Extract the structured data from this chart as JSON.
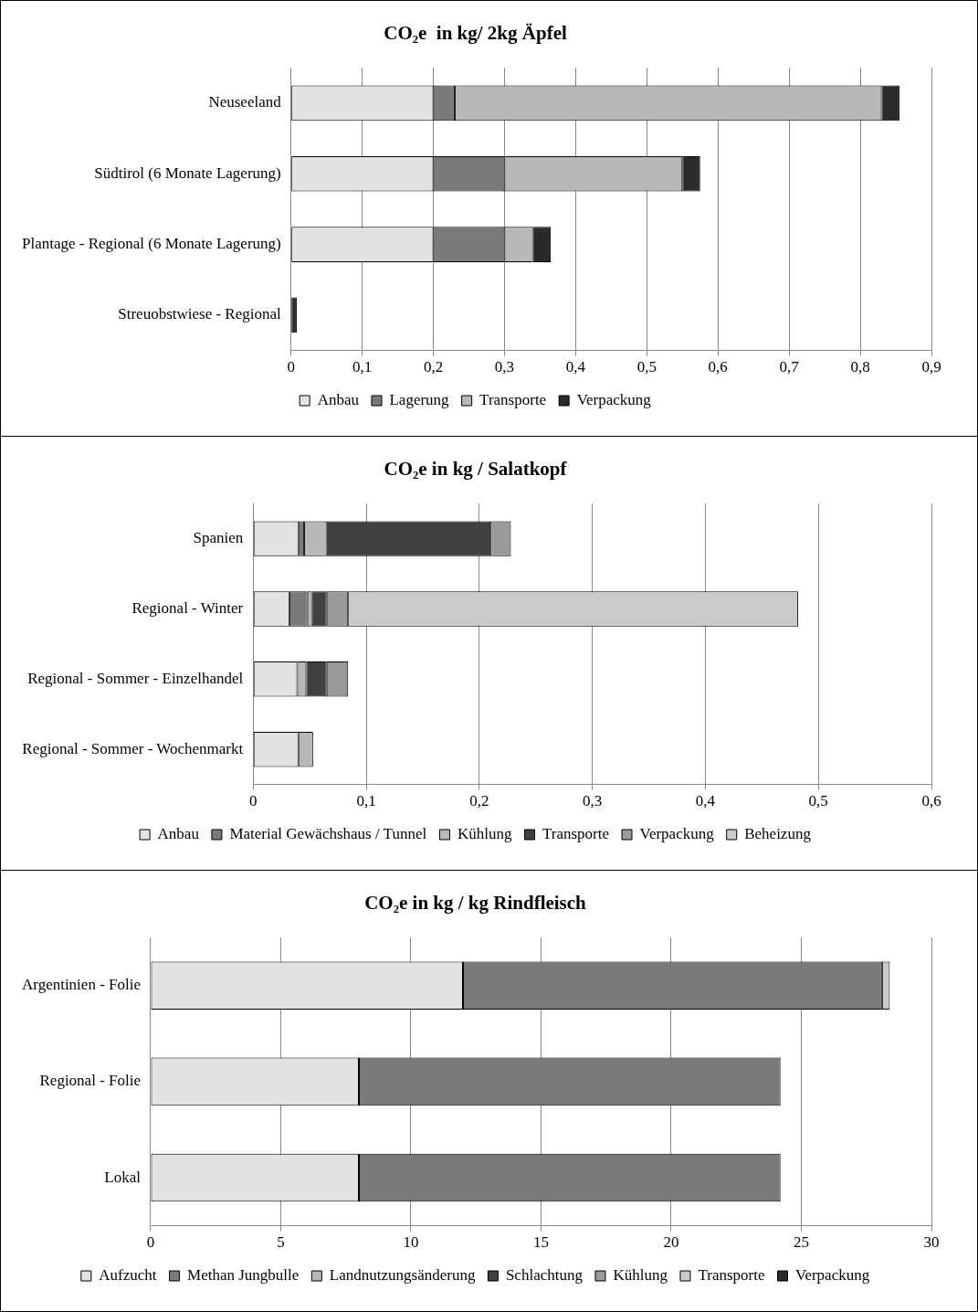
{
  "chart_data": [
    {
      "type": "bar",
      "orientation": "horizontal",
      "stacked": true,
      "title": "CO₂e  in kg/ 2kg Äpfel",
      "categories": [
        "Neuseeland",
        "Südtirol (6 Monate Lagerung)",
        "Plantage - Regional (6 Monate Lagerung)",
        "Streuobstwiese - Regional"
      ],
      "series": [
        {
          "name": "Anbau",
          "color": "#e2e2e2",
          "values": [
            0.2,
            0.2,
            0.2,
            null
          ]
        },
        {
          "name": "Lagerung",
          "color": "#7a7a7a",
          "values": [
            0.03,
            0.1,
            0.1,
            null
          ]
        },
        {
          "name": "Transporte",
          "color": "#b8b8b8",
          "values": [
            0.6,
            0.25,
            0.04,
            null
          ]
        },
        {
          "name": "Verpackung",
          "color": "#2a2a2a",
          "values": [
            0.025,
            0.025,
            0.025,
            0.008
          ]
        }
      ],
      "xlim": [
        0,
        0.9
      ],
      "xticks": [
        0,
        {
          "value": 0.1,
          "label": "0,1"
        },
        {
          "value": 0.2,
          "label": "0,2"
        },
        {
          "value": 0.3,
          "label": "0,3"
        },
        {
          "value": 0.4,
          "label": "0,4"
        },
        {
          "value": 0.5,
          "label": "0,5"
        },
        {
          "value": 0.6,
          "label": "0,6"
        },
        {
          "value": 0.7,
          "label": "0,7"
        },
        {
          "value": 0.8,
          "label": "0,8"
        },
        {
          "value": 0.9,
          "label": "0,9"
        }
      ],
      "grid": "x",
      "legend": "bottom"
    },
    {
      "type": "bar",
      "orientation": "horizontal",
      "stacked": true,
      "title": "CO₂e in kg / Salatkopf",
      "categories": [
        "Spanien",
        "Regional - Winter",
        "Regional - Sommer - Einzelhandel",
        "Regional - Sommer - Wochenmarkt"
      ],
      "series": [
        {
          "name": "Anbau",
          "color": "#e2e2e2",
          "values": [
            0.04,
            0.032,
            0.039,
            0.04
          ]
        },
        {
          "name": "Material Gewächshaus / Tunnel",
          "color": "#7a7a7a",
          "values": [
            0.005,
            0.016,
            null,
            null
          ]
        },
        {
          "name": "Kühlung",
          "color": "#b8b8b8",
          "values": [
            0.02,
            0.004,
            0.008,
            0.013
          ]
        },
        {
          "name": "Transporte",
          "color": "#404040",
          "values": [
            0.145,
            0.013,
            0.018,
            null
          ]
        },
        {
          "name": "Verpackung",
          "color": "#9a9a9a",
          "values": [
            0.018,
            0.019,
            0.019,
            null
          ]
        },
        {
          "name": "Beheizung",
          "color": "#cacaca",
          "values": [
            null,
            0.398,
            null,
            null
          ]
        }
      ],
      "xlim": [
        0,
        0.6
      ],
      "xticks": [
        0,
        {
          "value": 0.1,
          "label": "0,1"
        },
        {
          "value": 0.2,
          "label": "0,2"
        },
        {
          "value": 0.3,
          "label": "0,3"
        },
        {
          "value": 0.4,
          "label": "0,4"
        },
        {
          "value": 0.5,
          "label": "0,5"
        },
        {
          "value": 0.6,
          "label": "0,6"
        }
      ],
      "grid": "x",
      "legend": "bottom"
    },
    {
      "type": "bar",
      "orientation": "horizontal",
      "stacked": true,
      "title": "CO₂e in kg / kg Rindfleisch",
      "categories": [
        "Argentinien - Folie",
        "Regional - Folie",
        "Lokal"
      ],
      "series": [
        {
          "name": "Aufzucht",
          "color": "#e2e2e2",
          "values": [
            12,
            8,
            8
          ]
        },
        {
          "name": "Methan Jungbulle",
          "color": "#7a7a7a",
          "values": [
            16.1,
            16.2,
            16.2
          ]
        },
        {
          "name": "Landnutzungsänderung",
          "color": "#b8b8b8",
          "values": [
            null,
            null,
            null
          ]
        },
        {
          "name": "Schlachtung",
          "color": "#404040",
          "values": [
            null,
            null,
            null
          ]
        },
        {
          "name": "Kühlung",
          "color": "#9a9a9a",
          "values": [
            null,
            null,
            null
          ]
        },
        {
          "name": "Transporte",
          "color": "#cacaca",
          "values": [
            0.3,
            null,
            null
          ]
        },
        {
          "name": "Verpackung",
          "color": "#2a2a2a",
          "values": [
            null,
            null,
            null
          ]
        }
      ],
      "xlim": [
        0,
        30
      ],
      "xticks": [
        0,
        5,
        10,
        15,
        20,
        25,
        30
      ],
      "grid": "x",
      "legend": "bottom"
    }
  ]
}
